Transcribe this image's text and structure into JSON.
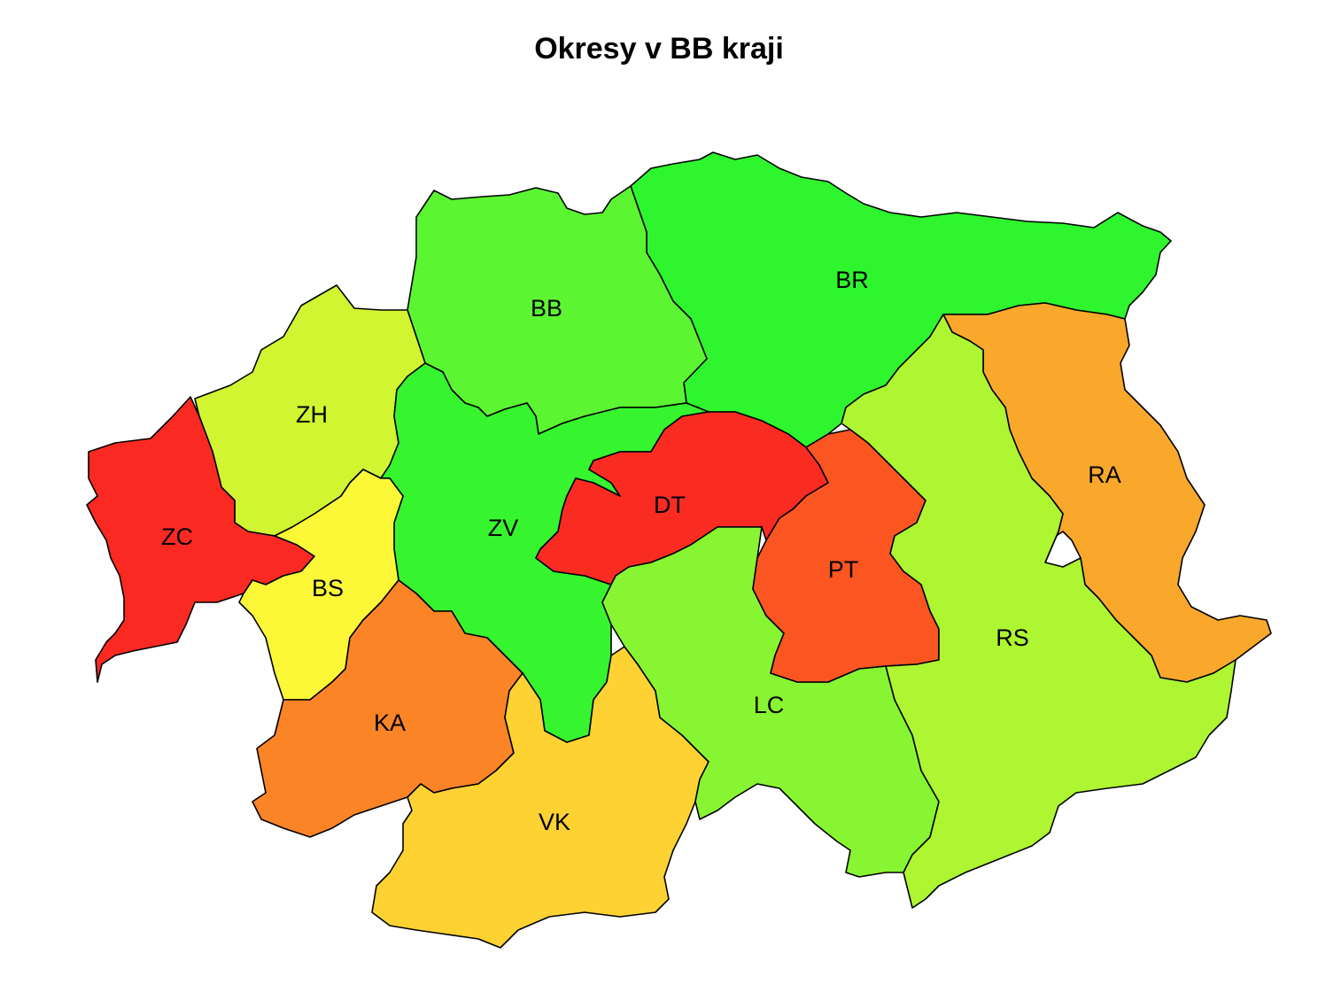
{
  "title": "Okresy v BB kraji",
  "districts": [
    {
      "id": "BB",
      "label": "BB",
      "color": "#5cf532"
    },
    {
      "id": "BR",
      "label": "BR",
      "color": "#2ef52e"
    },
    {
      "id": "ZH",
      "label": "ZH",
      "color": "#d2f532"
    },
    {
      "id": "ZC",
      "label": "ZC",
      "color": "#fa2a22"
    },
    {
      "id": "BS",
      "label": "BS",
      "color": "#fcf838"
    },
    {
      "id": "ZV",
      "label": "ZV",
      "color": "#36f52e"
    },
    {
      "id": "DT",
      "label": "DT",
      "color": "#fa2c22"
    },
    {
      "id": "PT",
      "label": "PT",
      "color": "#fb5622"
    },
    {
      "id": "RA",
      "label": "RA",
      "color": "#f9a82c"
    },
    {
      "id": "RS",
      "label": "RS",
      "color": "#aef532"
    },
    {
      "id": "LC",
      "label": "LC",
      "color": "#88f532"
    },
    {
      "id": "KA",
      "label": "KA",
      "color": "#fb8426"
    },
    {
      "id": "VK",
      "label": "VK",
      "color": "#fdd232"
    }
  ]
}
